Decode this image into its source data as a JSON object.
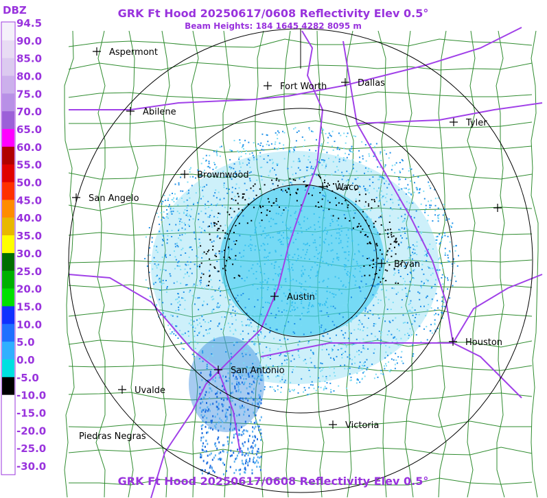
{
  "header": {
    "title": "GRK Ft Hood 20250617/0608 Reflectivity Elev 0.5°",
    "subtitle": "Beam Heights: 184 1645 4282 8095 m",
    "footer": "GRK Ft Hood 20250617/0608 Reflectivity Elev 0.5°"
  },
  "legend": {
    "unit": "DBZ",
    "labels": [
      "94.5",
      "90.0",
      "85.0",
      "80.0",
      "75.0",
      "70.0",
      "65.0",
      "60.0",
      "55.0",
      "50.0",
      "45.0",
      "40.0",
      "35.0",
      "30.0",
      "25.0",
      "20.0",
      "15.0",
      "10.0",
      "5.0",
      "0.0",
      "-5.0",
      "-10.0",
      "-15.0",
      "-20.0",
      "-25.0",
      "-30.0"
    ]
  },
  "cities": [
    {
      "label": "Aspermont"
    },
    {
      "label": "Fort Worth"
    },
    {
      "label": "Dallas"
    },
    {
      "label": "Abilene"
    },
    {
      "label": "Tyler"
    },
    {
      "label": "Brownwood"
    },
    {
      "label": "Waco"
    },
    {
      "label": "San Angelo"
    },
    {
      "label": "Bryan"
    },
    {
      "label": "Austin"
    },
    {
      "label": "Houston"
    },
    {
      "label": "San Antonio"
    },
    {
      "label": "Uvalde"
    },
    {
      "label": "Victoria"
    },
    {
      "label": "Piedras Negras"
    }
  ]
}
